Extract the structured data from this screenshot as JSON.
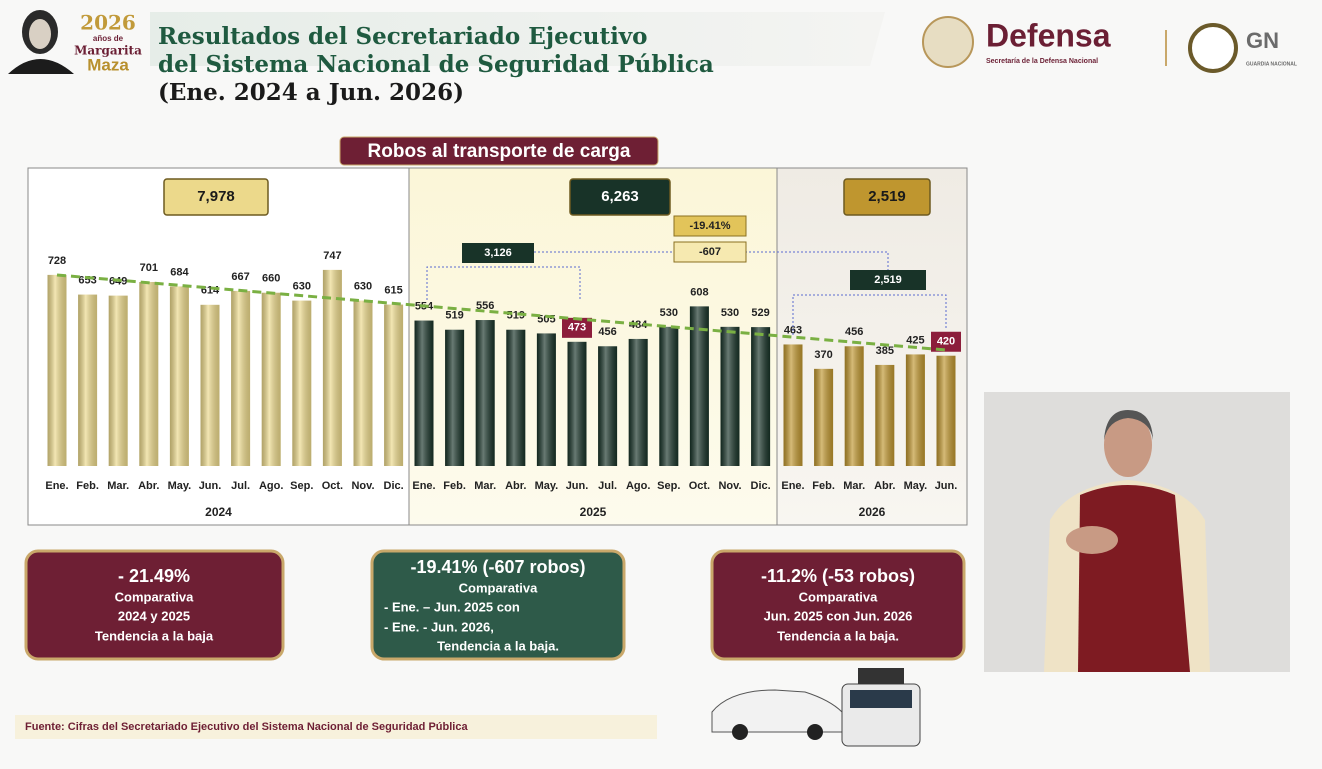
{
  "header": {
    "title": [
      "Resultados del Secretariado Ejecutivo",
      "del Sistema Nacional de Seguridad Pública",
      "(Ene. 2024 a Jun. 2026)"
    ],
    "logo": {
      "year": "2026",
      "years_text": "años de",
      "name_1": "Margarita",
      "name_2": "Maza"
    },
    "defensa": {
      "name": "Defensa",
      "subtitle": "Secretaría de la Defensa Nacional"
    },
    "gn": {
      "name": "GN",
      "subtitle": "GUARDIA NACIONAL"
    }
  },
  "chart_title": "Robos al transporte de carga",
  "chart_data": [
    {
      "type": "bar",
      "title": "2024",
      "total": {
        "value": 7978,
        "label": "7,978"
      },
      "categories": [
        "Ene.",
        "Feb.",
        "Mar.",
        "Abr.",
        "May.",
        "Jun.",
        "Jul.",
        "Ago.",
        "Sep.",
        "Oct.",
        "Nov.",
        "Dic."
      ],
      "values": [
        728,
        653,
        649,
        701,
        684,
        614,
        667,
        660,
        630,
        747,
        630,
        615
      ],
      "color": "#ecd98b",
      "ylim": [
        0,
        800
      ]
    },
    {
      "type": "bar",
      "title": "2025",
      "total": {
        "value": 6263,
        "label": "6,263"
      },
      "categories": [
        "Ene.",
        "Feb.",
        "Mar.",
        "Abr.",
        "May.",
        "Jun.",
        "Jul.",
        "Ago.",
        "Sep.",
        "Oct.",
        "Nov.",
        "Dic."
      ],
      "values": [
        554,
        519,
        556,
        519,
        505,
        473,
        456,
        484,
        530,
        608,
        530,
        529
      ],
      "color": "#183328",
      "ylim": [
        0,
        800
      ],
      "highlight": [
        5
      ]
    },
    {
      "type": "bar",
      "title": "2026",
      "total": {
        "value": 2519,
        "label": "2,519"
      },
      "categories": [
        "Ene.",
        "Feb.",
        "Mar.",
        "Abr.",
        "May.",
        "Jun."
      ],
      "values": [
        463,
        370,
        456,
        385,
        425,
        420
      ],
      "color": "#bf962f",
      "ylim": [
        0,
        800
      ],
      "highlight": [
        5
      ]
    }
  ],
  "annotations": {
    "sum_2025": {
      "value": 3126,
      "label": "3,126"
    },
    "sum_2026": {
      "value": 2519,
      "label": "2,519"
    },
    "change_pct": {
      "value": -19.41,
      "label": "-19.41%"
    },
    "change_abs": {
      "value": -607,
      "label": "-607"
    }
  },
  "summary_boxes": [
    {
      "headline": "- 21.49%",
      "lines": [
        "Comparativa",
        "2024 y 2025",
        "Tendencia a la baja"
      ]
    },
    {
      "headline": "-19.41% (-607 robos)",
      "lines": [
        "Comparativa",
        "-  Ene. – Jun. 2025 con",
        "-  Ene. - Jun. 2026,",
        "Tendencia a la baja."
      ]
    },
    {
      "headline": "-11.2% (-53 robos)",
      "lines": [
        "Comparativa",
        "Jun. 2025 con Jun. 2026",
        "Tendencia a la baja."
      ]
    }
  ],
  "source": "Fuente: Cifras del Secretariado Ejecutivo del Sistema Nacional de Seguridad Pública"
}
